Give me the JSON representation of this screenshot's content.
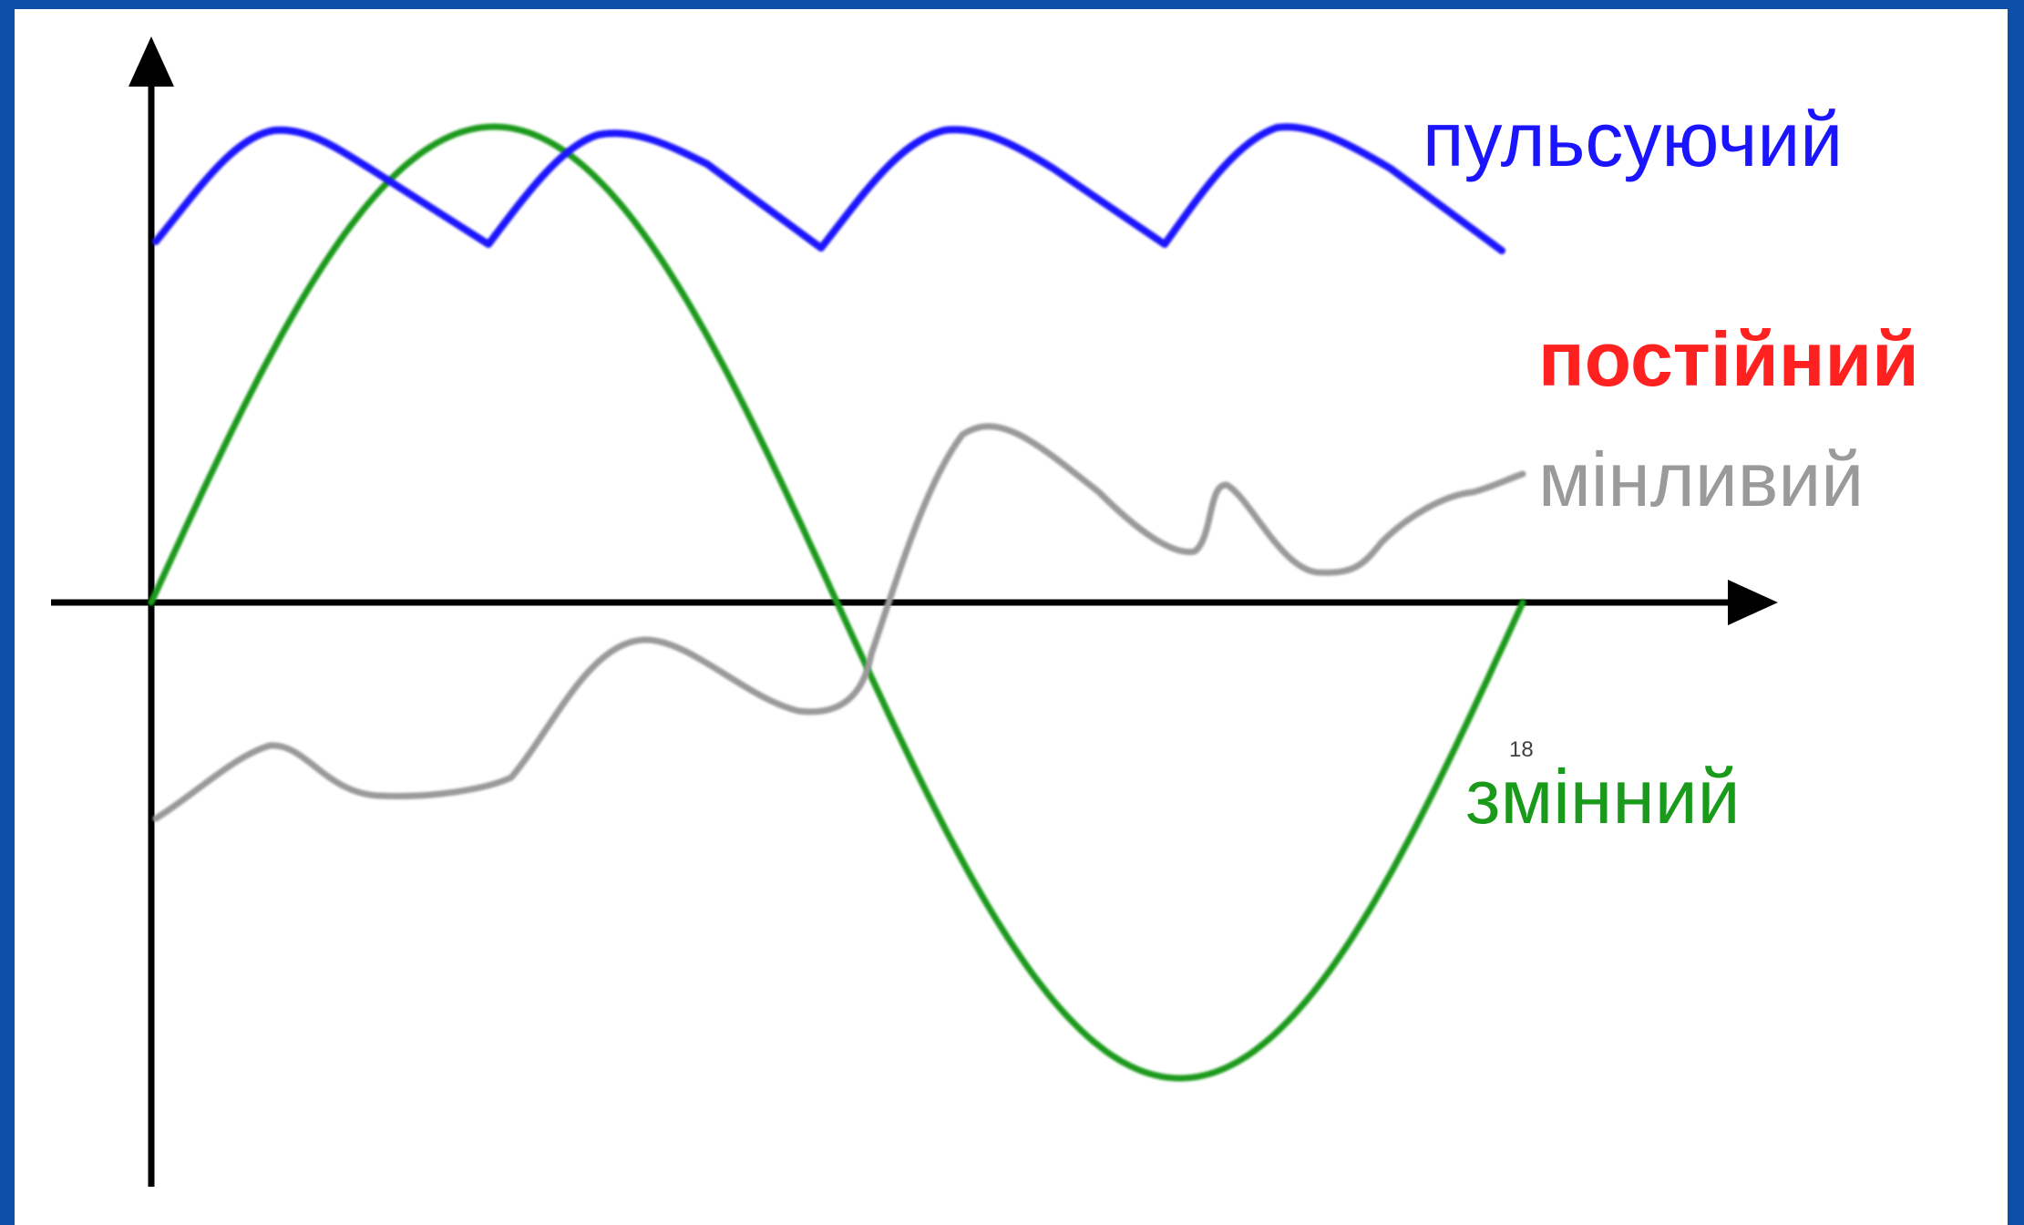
{
  "slide": {
    "frame_color": "#0d4fa8",
    "page_number": "18"
  },
  "diagram": {
    "axes": {
      "color": "#000000",
      "x_axis_arrow": "right-arrow-icon",
      "y_axis_arrow": "up-arrow-icon"
    },
    "curves": [
      {
        "id": "pulsating",
        "label": "пульсуючий",
        "color": "#1a14ff",
        "shape": "triangular pulses above axis"
      },
      {
        "id": "direct",
        "label": "постійний",
        "color": "#ff2020",
        "shape": "horizontal line"
      },
      {
        "id": "variable",
        "label": "мінливий",
        "color": "#9a9a9a",
        "shape": "irregular wave"
      },
      {
        "id": "alternating",
        "label": "змінний",
        "color": "#1a9a1a",
        "shape": "one sine period"
      }
    ]
  }
}
